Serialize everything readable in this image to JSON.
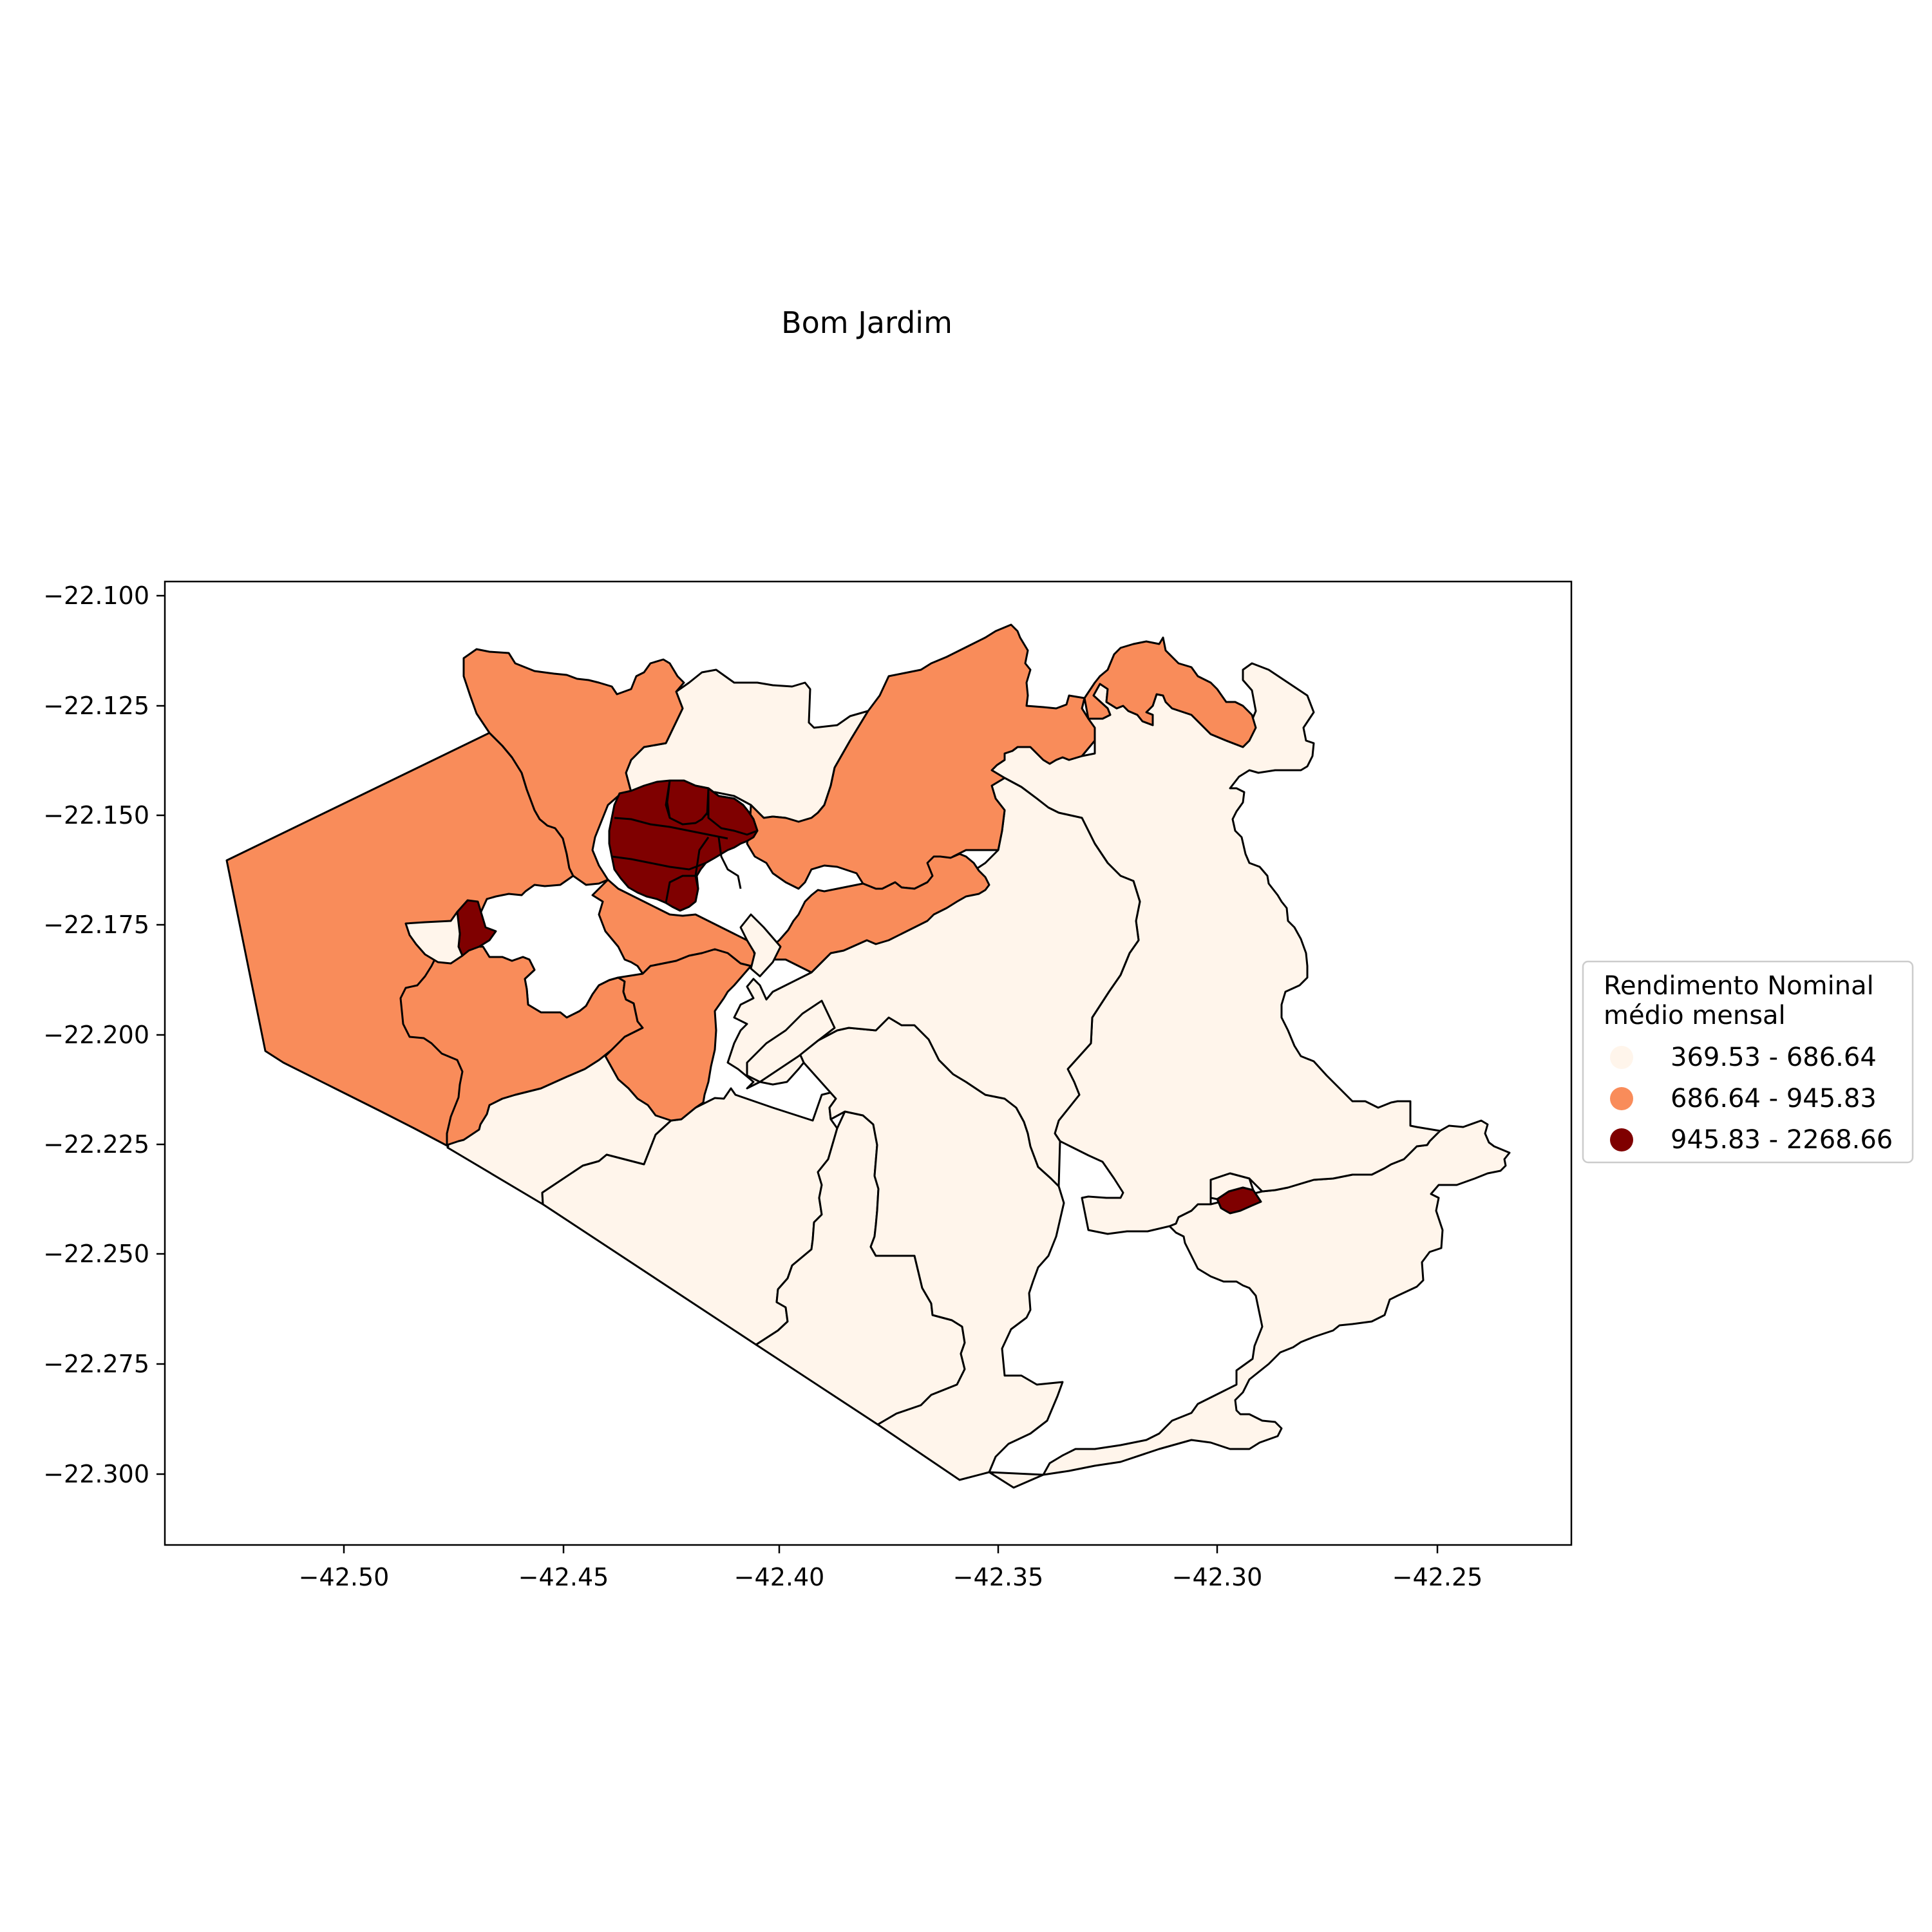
{
  "chart_data": {
    "type": "choropleth",
    "title": "Bom Jardim",
    "xlabel": "",
    "ylabel": "",
    "x_ticks": [
      "−42.50",
      "−42.45",
      "−42.40",
      "−42.35",
      "−42.30",
      "−42.25"
    ],
    "y_ticks": [
      "−22.100",
      "−22.125",
      "−22.150",
      "−22.175",
      "−22.200",
      "−22.225",
      "−22.250",
      "−22.275",
      "−22.300"
    ],
    "xlim": [
      -42.541,
      -42.221
    ],
    "ylim": [
      -22.316,
      -22.097
    ],
    "legend": {
      "title_line1": "Rendimento Nominal",
      "title_line2": "médio mensal",
      "placement": "center-right outside",
      "classes": [
        {
          "label": "369.53 - 686.64",
          "color": "#fff5eb"
        },
        {
          "label": "686.64 - 945.83",
          "color": "#f98c5a"
        },
        {
          "label": "945.83 - 2268.66",
          "color": "#7f0000"
        }
      ]
    }
  },
  "colors": {
    "low": "#fff5eb",
    "mid": "#f98c5a",
    "high": "#7f0000",
    "edge": "#000000"
  }
}
